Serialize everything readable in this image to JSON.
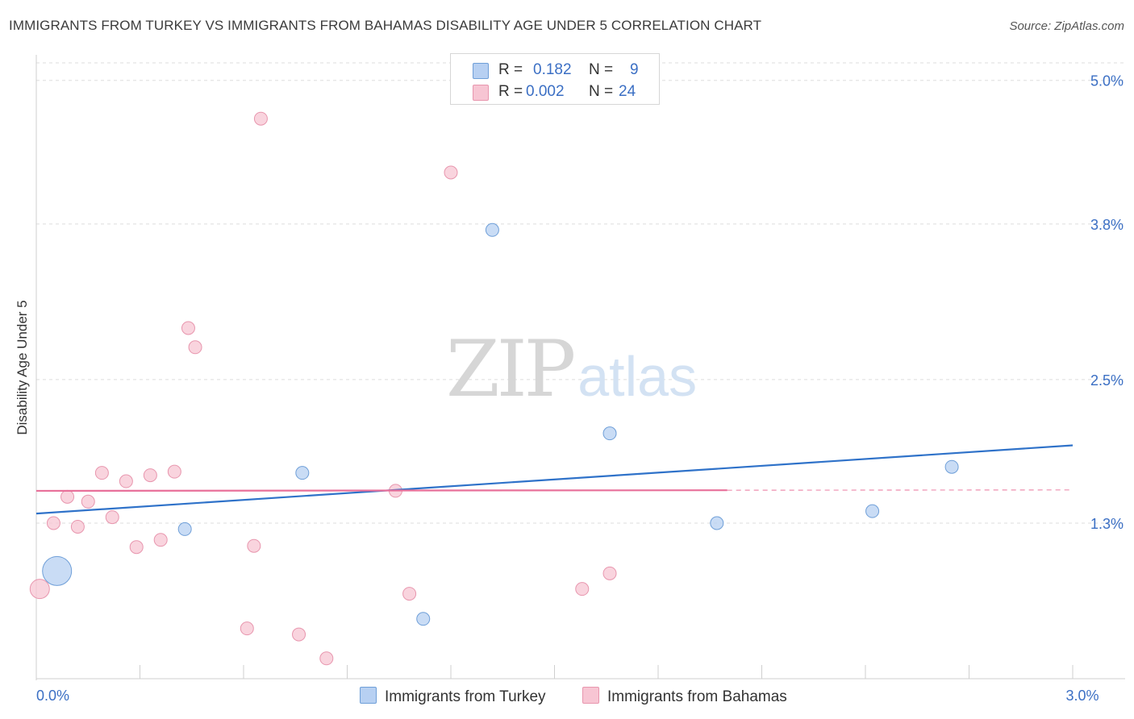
{
  "header": {
    "title": "IMMIGRANTS FROM TURKEY VS IMMIGRANTS FROM BAHAMAS DISABILITY AGE UNDER 5 CORRELATION CHART",
    "source": "Source: ZipAtlas.com"
  },
  "watermark": {
    "zip": "ZIP",
    "atlas": "atlas"
  },
  "legend": {
    "turkey": {
      "r_label": "R =",
      "r_value": "0.182",
      "n_label": "N =",
      "n_value": "9"
    },
    "bahamas": {
      "r_label": "R =",
      "r_value": "0.002",
      "n_label": "N =",
      "n_value": "24"
    }
  },
  "bottom_legend": {
    "turkey": "Immigrants from Turkey",
    "bahamas": "Immigrants from Bahamas"
  },
  "colors": {
    "turkey_fill": "#b7d0f2",
    "turkey_stroke": "#6f9fd8",
    "turkey_line": "#2f72c9",
    "bahamas_fill": "#f7c5d3",
    "bahamas_stroke": "#e896ae",
    "bahamas_line": "#e8709a",
    "tick_label": "#3b6fc4",
    "grid": "#dddddd"
  },
  "chart_data": {
    "type": "scatter",
    "title": "IMMIGRANTS FROM TURKEY VS IMMIGRANTS FROM BAHAMAS DISABILITY AGE UNDER 5 CORRELATION CHART",
    "xlabel": "",
    "ylabel": "Disability Age Under 5",
    "xlim": [
      0.0,
      3.0
    ],
    "ylim": [
      0.0,
      5.2
    ],
    "x_tick_labels": [
      {
        "value": 0.0,
        "label": "0.0%"
      },
      {
        "value": 3.0,
        "label": "3.0%"
      }
    ],
    "y_ticks": [
      {
        "value": 5.0,
        "label": "5.0%"
      },
      {
        "value": 3.8,
        "label": "3.8%"
      },
      {
        "value": 2.5,
        "label": "2.5%"
      },
      {
        "value": 1.3,
        "label": "1.3%"
      }
    ],
    "series": [
      {
        "name": "Immigrants from Turkey",
        "color": "#6f9fd8",
        "points": [
          {
            "x": 0.06,
            "y": 0.9,
            "size": "large"
          },
          {
            "x": 0.43,
            "y": 1.25
          },
          {
            "x": 0.77,
            "y": 1.72
          },
          {
            "x": 1.12,
            "y": 0.5
          },
          {
            "x": 1.32,
            "y": 3.75
          },
          {
            "x": 1.66,
            "y": 2.05
          },
          {
            "x": 1.97,
            "y": 1.3
          },
          {
            "x": 2.42,
            "y": 1.4
          },
          {
            "x": 2.65,
            "y": 1.77
          }
        ],
        "trend": {
          "x0": 0.0,
          "y0": 1.38,
          "x1": 3.0,
          "y1": 1.95,
          "style": "solid"
        }
      },
      {
        "name": "Immigrants from Bahamas",
        "color": "#e896ae",
        "points": [
          {
            "x": 0.01,
            "y": 0.75,
            "size": "medium"
          },
          {
            "x": 0.05,
            "y": 1.3
          },
          {
            "x": 0.09,
            "y": 1.52
          },
          {
            "x": 0.12,
            "y": 1.27
          },
          {
            "x": 0.15,
            "y": 1.48
          },
          {
            "x": 0.19,
            "y": 1.72
          },
          {
            "x": 0.22,
            "y": 1.35
          },
          {
            "x": 0.26,
            "y": 1.65
          },
          {
            "x": 0.29,
            "y": 1.1
          },
          {
            "x": 0.33,
            "y": 1.7
          },
          {
            "x": 0.36,
            "y": 1.16
          },
          {
            "x": 0.4,
            "y": 1.73
          },
          {
            "x": 0.44,
            "y": 2.93
          },
          {
            "x": 0.46,
            "y": 2.77
          },
          {
            "x": 0.61,
            "y": 0.42
          },
          {
            "x": 0.63,
            "y": 1.11
          },
          {
            "x": 0.65,
            "y": 4.68
          },
          {
            "x": 0.76,
            "y": 0.37
          },
          {
            "x": 0.84,
            "y": 0.17
          },
          {
            "x": 1.04,
            "y": 1.57
          },
          {
            "x": 1.08,
            "y": 0.71
          },
          {
            "x": 1.2,
            "y": 4.23
          },
          {
            "x": 1.58,
            "y": 0.75
          },
          {
            "x": 1.66,
            "y": 0.88
          }
        ],
        "trend": {
          "x0": 0.0,
          "y0": 1.57,
          "x1": 2.0,
          "y1": 1.575,
          "dash_to": 3.0,
          "style": "solid-then-dashed"
        }
      }
    ]
  }
}
